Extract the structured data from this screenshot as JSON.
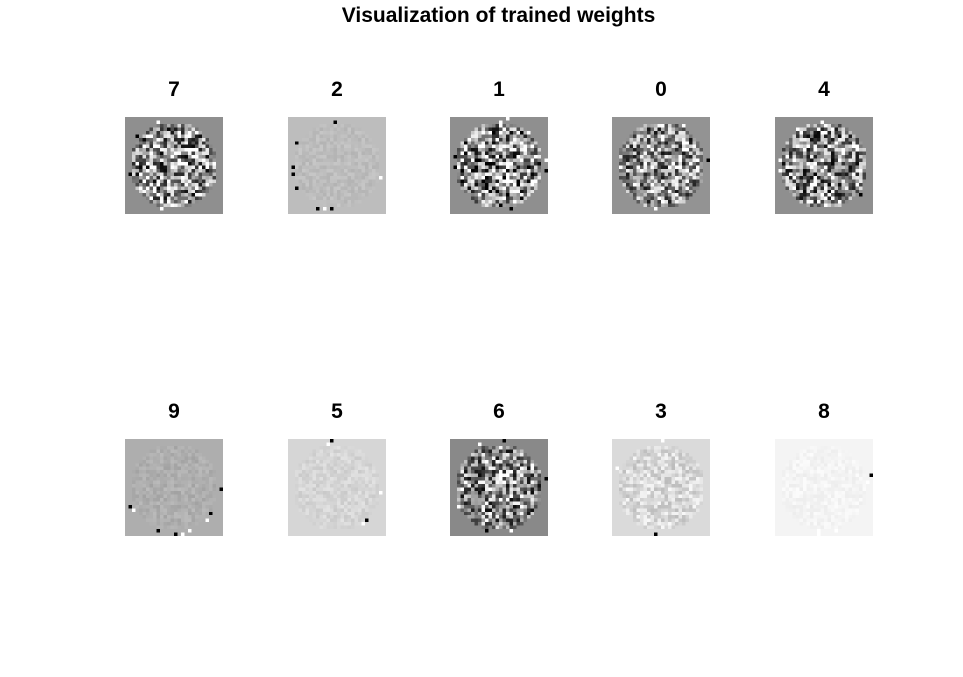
{
  "figure": {
    "title": "Visualization of trained weights"
  },
  "panels": [
    {
      "label": "7",
      "background": "#8f8f8f",
      "contrast": 0.55
    },
    {
      "label": "2",
      "background": "#bdbdbd",
      "contrast": 0.04
    },
    {
      "label": "1",
      "background": "#8f8f8f",
      "contrast": 0.6
    },
    {
      "label": "0",
      "background": "#939393",
      "contrast": 0.5
    },
    {
      "label": "4",
      "background": "#8f8f8f",
      "contrast": 0.55
    },
    {
      "label": "9",
      "background": "#aeaeae",
      "contrast": 0.05
    },
    {
      "label": "5",
      "background": "#d6d6d6",
      "contrast": 0.05
    },
    {
      "label": "6",
      "background": "#898989",
      "contrast": 0.5
    },
    {
      "label": "3",
      "background": "#dadada",
      "contrast": 0.12
    },
    {
      "label": "8",
      "background": "#f4f4f4",
      "contrast": 0.03
    }
  ]
}
